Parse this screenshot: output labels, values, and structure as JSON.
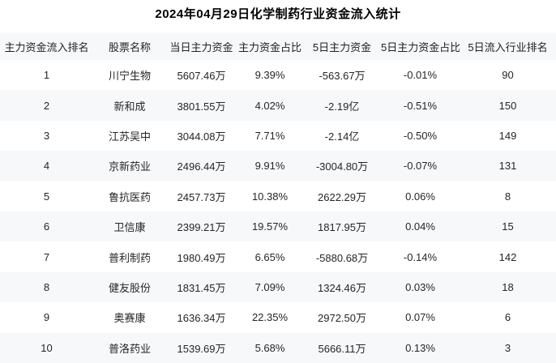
{
  "title": "2024年04月29日化学制药行业资金流入统计",
  "chart_data": {
    "type": "table",
    "title": "2024年04月29日化学制药行业资金流入统计",
    "columns": [
      "主力资金流入排名",
      "股票名称",
      "当日主力资金",
      "主力资金占比",
      "5日主力资金",
      "5日主力资金占比",
      "5日流入行业排名"
    ],
    "rows": [
      [
        "1",
        "川宁生物",
        "5607.46万",
        "9.39%",
        "-563.67万",
        "-0.01%",
        "90"
      ],
      [
        "2",
        "新和成",
        "3801.55万",
        "4.02%",
        "-2.19亿",
        "-0.51%",
        "150"
      ],
      [
        "3",
        "江苏吴中",
        "3044.08万",
        "7.71%",
        "-2.14亿",
        "-0.50%",
        "149"
      ],
      [
        "4",
        "京新药业",
        "2496.44万",
        "9.91%",
        "-3004.80万",
        "-0.07%",
        "131"
      ],
      [
        "5",
        "鲁抗医药",
        "2457.73万",
        "10.38%",
        "2622.29万",
        "0.06%",
        "8"
      ],
      [
        "6",
        "卫信康",
        "2399.21万",
        "19.57%",
        "1817.95万",
        "0.04%",
        "15"
      ],
      [
        "7",
        "普利制药",
        "1980.49万",
        "6.65%",
        "-5880.68万",
        "-0.14%",
        "142"
      ],
      [
        "8",
        "健友股份",
        "1831.45万",
        "7.09%",
        "1324.46万",
        "0.03%",
        "18"
      ],
      [
        "9",
        "奥赛康",
        "1636.34万",
        "22.35%",
        "2972.50万",
        "0.07%",
        "6"
      ],
      [
        "10",
        "普洛药业",
        "1539.69万",
        "5.68%",
        "5666.11万",
        "0.13%",
        "3"
      ]
    ]
  },
  "colors": {
    "stripe_bg": "#f7f8fa",
    "header_bg": "#f7f8fa",
    "text": "#262626",
    "title_text": "#000000",
    "page_bg": "#ffffff"
  }
}
